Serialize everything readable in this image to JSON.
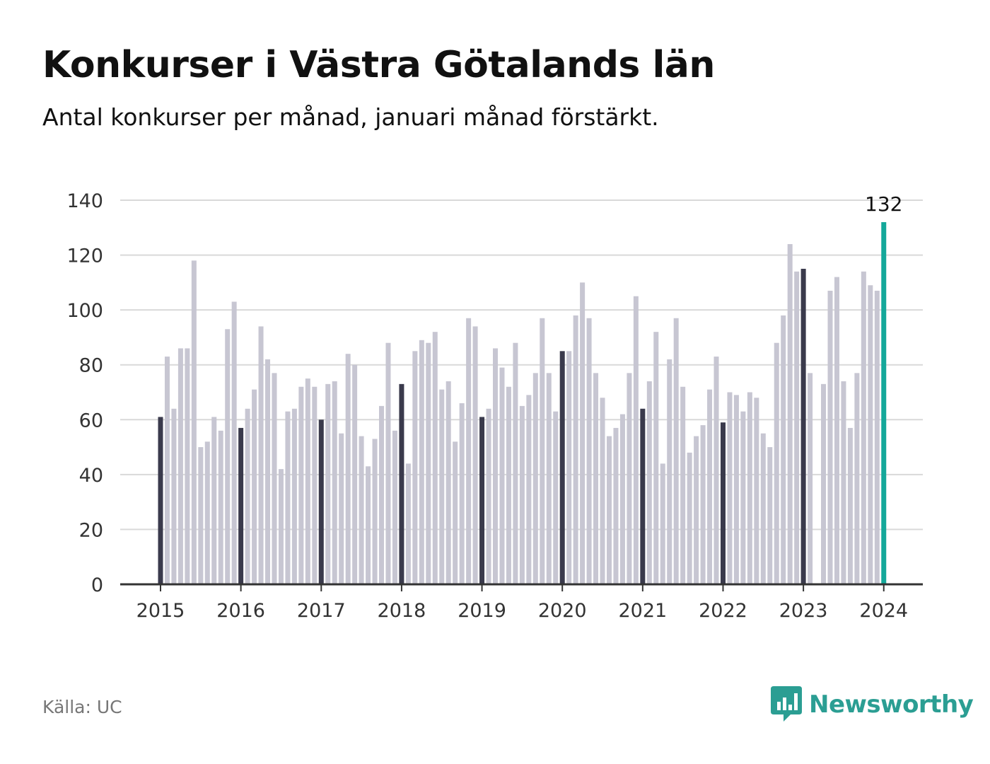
{
  "title": "Konkurser i Västra Götalands län",
  "subtitle": "Antal konkurser per månad, januari månad förstärkt.",
  "source": "Källa: UC",
  "brand": {
    "name": "Newsworthy",
    "icon": "newsworthy-bar-chart-logo"
  },
  "colors": {
    "bar": "#c7c6d2",
    "january": "#3a3a4c",
    "latest": "#14a89a",
    "grid": "#d9d9d9",
    "axis": "#333333",
    "brand": "#2b9e93"
  },
  "chart_data": {
    "type": "bar",
    "title": "Konkurser i Västra Götalands län",
    "subtitle": "Antal konkurser per månad, januari månad förstärkt.",
    "xlabel": "",
    "ylabel": "",
    "ylim": [
      0,
      140
    ],
    "yticks": [
      0,
      20,
      40,
      60,
      80,
      100,
      120,
      140
    ],
    "xticks": [
      "2015",
      "2016",
      "2017",
      "2018",
      "2019",
      "2020",
      "2021",
      "2022",
      "2023",
      "2024"
    ],
    "grid": true,
    "start": "2015-01",
    "end": "2024-01",
    "highlight": "January of each year in dark; latest month (2024-01) in teal",
    "series": [
      {
        "values": [
          61,
          83,
          64,
          86,
          86,
          118,
          50,
          52,
          61,
          56,
          93,
          103,
          57,
          64,
          71,
          94,
          82,
          77,
          42,
          63,
          64,
          72,
          75,
          72,
          60,
          73,
          74,
          55,
          84,
          80,
          54,
          43,
          53,
          65,
          88,
          56,
          73,
          44,
          85,
          89,
          88,
          92,
          71,
          74,
          52,
          66,
          97,
          94,
          61,
          64,
          86,
          79,
          72,
          88,
          65,
          69,
          77,
          97,
          77,
          63,
          85,
          85,
          98,
          110,
          97,
          77,
          68,
          54,
          57,
          62,
          77,
          105,
          64,
          74,
          92,
          44,
          82,
          97,
          72,
          48,
          54,
          58,
          71,
          83,
          59,
          70,
          69,
          63,
          70,
          68,
          55,
          50,
          88,
          98,
          124,
          114,
          115,
          77,
          0,
          73,
          107,
          112,
          74,
          57,
          77,
          114,
          109,
          107,
          132
        ]
      }
    ],
    "annotations": [
      {
        "x": "2024-01",
        "text": "132"
      }
    ]
  }
}
